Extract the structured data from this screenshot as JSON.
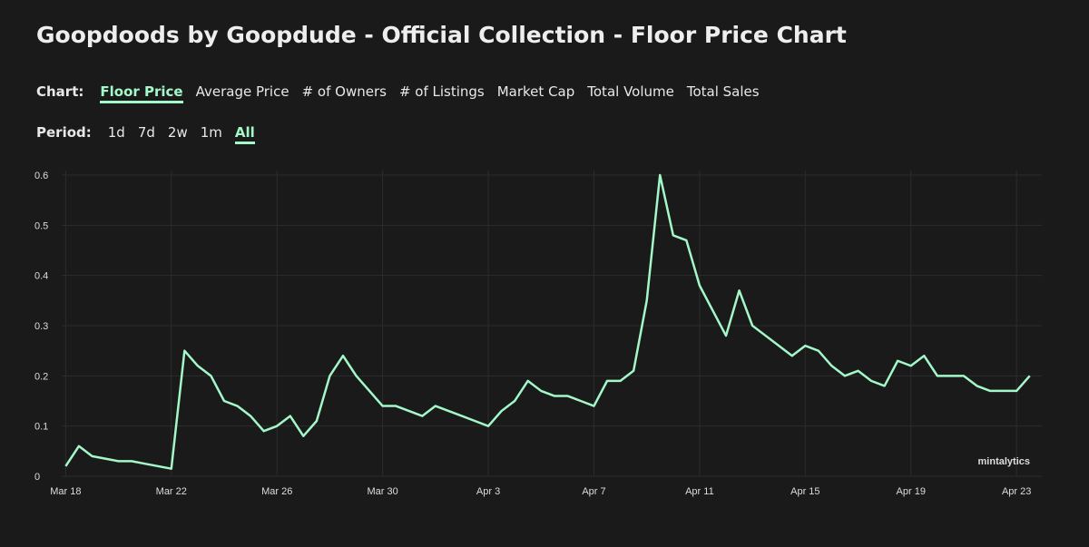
{
  "page_title": "Goopdoods by Goopdude - Official Collection - Floor Price Chart",
  "chart_label": "Chart:",
  "tabs": [
    "Floor Price",
    "Average Price",
    "# of Owners",
    "# of Listings",
    "Market Cap",
    "Total Volume",
    "Total Sales"
  ],
  "period_label": "Period:",
  "periods": [
    "1d",
    "7d",
    "2w",
    "1m",
    "All"
  ],
  "chart_data": {
    "type": "line",
    "watermark": "mintalytics",
    "x": [
      0,
      0.5,
      1,
      1.5,
      2,
      2.5,
      3,
      3.5,
      4,
      4.5,
      5,
      5.5,
      6,
      6.5,
      7,
      7.5,
      8,
      8.5,
      9,
      9.5,
      10,
      10.5,
      11,
      11.5,
      12,
      12.5,
      13,
      13.5,
      14,
      14.5,
      15,
      15.5,
      16,
      16.5,
      17,
      17.5,
      18,
      18.5,
      19,
      19.5,
      20,
      20.5,
      21,
      21.5,
      22,
      22.5,
      23,
      23.5,
      24,
      24.5,
      25,
      25.5,
      26,
      26.5,
      27,
      27.5,
      28,
      28.5,
      29,
      29.5,
      30,
      30.5,
      31,
      31.5,
      32,
      32.5,
      33,
      33.5,
      34,
      34.5,
      35,
      35.5,
      36,
      36.5
    ],
    "series": [
      {
        "color": "#a3f7c8",
        "values": [
          0.02,
          0.06,
          0.04,
          0.035,
          0.03,
          0.03,
          0.025,
          0.02,
          0.015,
          0.25,
          0.22,
          0.2,
          0.15,
          0.14,
          0.12,
          0.09,
          0.1,
          0.12,
          0.08,
          0.11,
          0.2,
          0.24,
          0.2,
          0.17,
          0.14,
          0.14,
          0.13,
          0.12,
          0.14,
          0.13,
          0.12,
          0.11,
          0.1,
          0.13,
          0.15,
          0.19,
          0.17,
          0.16,
          0.16,
          0.15,
          0.14,
          0.19,
          0.19,
          0.21,
          0.35,
          0.6,
          0.48,
          0.47,
          0.38,
          0.33,
          0.28,
          0.37,
          0.3,
          0.28,
          0.26,
          0.24,
          0.26,
          0.25,
          0.22,
          0.2,
          0.21,
          0.19,
          0.18,
          0.23,
          0.22,
          0.24,
          0.2,
          0.2,
          0.2,
          0.18,
          0.17,
          0.17,
          0.17,
          0.2
        ]
      }
    ],
    "xlim": [
      -0.15,
      36.75
    ],
    "xticks": [
      {
        "value": 0,
        "label": "Mar 18"
      },
      {
        "value": 4,
        "label": "Mar 22"
      },
      {
        "value": 8,
        "label": "Mar 26"
      },
      {
        "value": 12,
        "label": "Mar 30"
      },
      {
        "value": 16,
        "label": "Apr 3"
      },
      {
        "value": 20,
        "label": "Apr 7"
      },
      {
        "value": 24,
        "label": "Apr 11"
      },
      {
        "value": 28,
        "label": "Apr 15"
      },
      {
        "value": 32,
        "label": "Apr 19"
      },
      {
        "value": 36,
        "label": "Apr 23"
      }
    ],
    "ylim": [
      0,
      0.6
    ],
    "yticks": [
      0,
      0.1,
      0.2,
      0.3,
      0.4,
      0.5,
      0.6
    ],
    "grid": true
  }
}
